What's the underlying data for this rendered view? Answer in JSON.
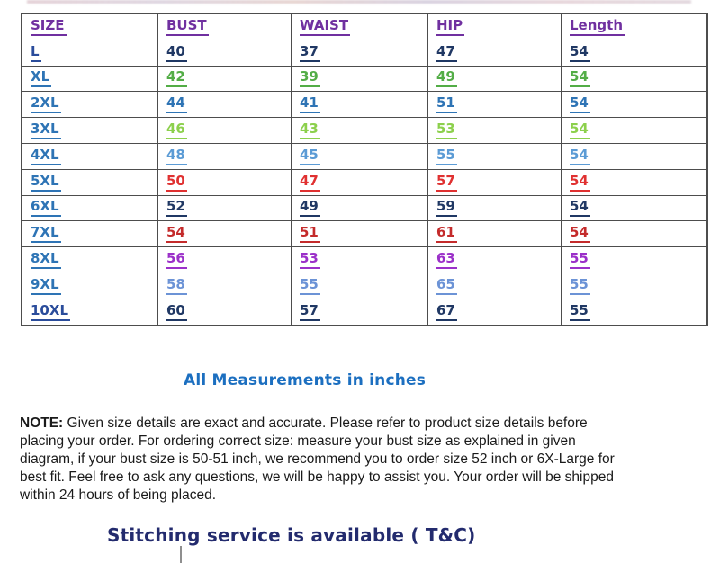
{
  "table": {
    "header_color": "#7030A0",
    "columns": [
      {
        "label": "SIZE"
      },
      {
        "label": "BUST"
      },
      {
        "label": "WAIST"
      },
      {
        "label": "HIP"
      },
      {
        "label": "Length"
      }
    ],
    "rows": [
      {
        "size": "L",
        "bust": "40",
        "waist": "37",
        "hip": "47",
        "length": "54",
        "label_color": "#2A4C9B",
        "value_color": "#203864"
      },
      {
        "size": "XL",
        "bust": "42",
        "waist": "39",
        "hip": "49",
        "length": "54",
        "label_color": "#2E74B5",
        "value_color": "#53AD46"
      },
      {
        "size": "2XL",
        "bust": "44",
        "waist": "41",
        "hip": "51",
        "length": "54",
        "label_color": "#2E74B5",
        "value_color": "#2E74B5"
      },
      {
        "size": "3XL",
        "bust": "46",
        "waist": "43",
        "hip": "53",
        "length": "54",
        "label_color": "#2E74B5",
        "value_color": "#8CD04C"
      },
      {
        "size": "4XL",
        "bust": "48",
        "waist": "45",
        "hip": "55",
        "length": "54",
        "label_color": "#2E74B5",
        "value_color": "#5B9BD5"
      },
      {
        "size": "5XL",
        "bust": "50",
        "waist": "47",
        "hip": "57",
        "length": "54",
        "label_color": "#2E74B5",
        "value_color": "#E03131"
      },
      {
        "size": "6XL",
        "bust": "52",
        "waist": "49",
        "hip": "59",
        "length": "54",
        "label_color": "#2E74B5",
        "value_color": "#203864"
      },
      {
        "size": "7XL",
        "bust": "54",
        "waist": "51",
        "hip": "61",
        "length": "54",
        "label_color": "#2E74B5",
        "value_color": "#C42B2B"
      },
      {
        "size": "8XL",
        "bust": "56",
        "waist": "53",
        "hip": "63",
        "length": "55",
        "label_color": "#2E74B5",
        "value_color": "#9B30C9"
      },
      {
        "size": "9XL",
        "bust": "58",
        "waist": "55",
        "hip": "65",
        "length": "55",
        "label_color": "#2E74B5",
        "value_color": "#6C93D6"
      },
      {
        "size": "10XL",
        "bust": "60",
        "waist": "57",
        "hip": "67",
        "length": "55",
        "label_color": "#2A4C9B",
        "value_color": "#203864"
      }
    ]
  },
  "measurements_note": {
    "text": "All Measurements in inches",
    "color": "#1C6FC0"
  },
  "note": {
    "label": "NOTE:",
    "line1_rest": " Given size details are exact and accurate. Please refer to product size details before",
    "lines": [
      "placing your order. For ordering correct size: measure your bust size as explained in given",
      "diagram, if your bust size is 50-51 inch, we recommend you to order size 52 inch or 6X-Large for",
      "best fit. Feel free to ask any questions, we will be happy to assist you. Your order will be shipped",
      "within 24 hours of being placed."
    ]
  },
  "stitching": {
    "text": "Stitching service is available ( T&C)",
    "color": "#232B6E"
  }
}
